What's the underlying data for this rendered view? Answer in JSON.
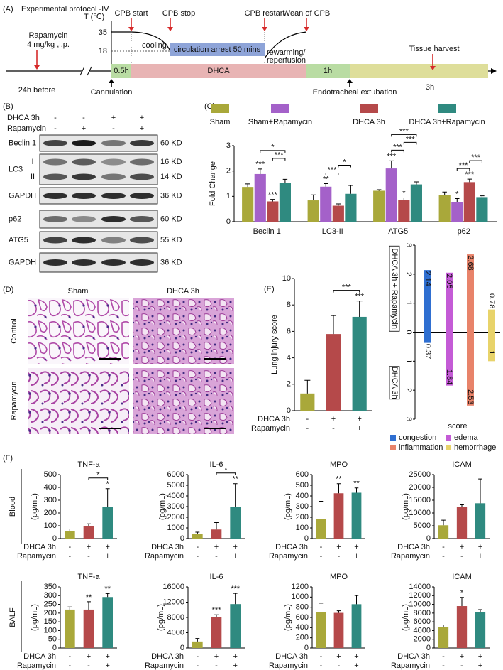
{
  "panel_labels": {
    "a": "(A)",
    "b": "(B)",
    "c": "(C)",
    "d": "(D)",
    "e": "(E)",
    "f": "(F)"
  },
  "protocol": {
    "title": "Experimental protocol -IV",
    "temperature_label": "T (℃)",
    "temperatures": [
      "35",
      "18"
    ],
    "events": [
      "CPB start",
      "CPB stop",
      "CPB restart",
      "Wean of CPB"
    ],
    "phases": [
      "cooling",
      "circulation arrest 50 mins"
    ],
    "rewarming": [
      "rewarming/",
      "reperfusion"
    ],
    "drug": [
      "Rapamycin",
      "4 mg/kg ,i.p."
    ],
    "pre_time": "24h before",
    "cannulation": "Cannulation",
    "timeline": [
      "0.5h",
      "DHCA",
      "1h"
    ],
    "extubation": "Endotracheal extubation",
    "harvest": "Tissue harvest",
    "harvest_time": "3h"
  },
  "western": {
    "conditions": [
      {
        "name": "DHCA 3h",
        "signs": [
          "-",
          "-",
          "+",
          "+"
        ]
      },
      {
        "name": "Rapamycin",
        "signs": [
          "-",
          "+",
          "-",
          "+"
        ]
      }
    ],
    "blots": [
      {
        "name": "Beclin 1",
        "sizes": [
          "60 KD"
        ]
      },
      {
        "name": "LC3",
        "bands": [
          "I",
          "II"
        ],
        "sizes": [
          "16 KD",
          "14 KD"
        ]
      },
      {
        "name": "GAPDH",
        "sizes": [
          "36 KD"
        ]
      },
      {
        "name": "p62",
        "sizes": [
          "60 KD"
        ]
      },
      {
        "name": "ATG5",
        "sizes": [
          "55 KD"
        ]
      },
      {
        "name": "GAPDH",
        "sizes": [
          "36 KD"
        ]
      }
    ]
  },
  "histology": {
    "columns": [
      "Sham",
      "DHCA 3h"
    ],
    "rows": [
      "Control",
      "Rapamycin"
    ]
  },
  "panel_f": {
    "rows": [
      "Blood",
      "BALF"
    ]
  },
  "chart_data": [
    {
      "type": "bar",
      "ylabel": "Fold Change",
      "categories": [
        "Beclin 1",
        "LC3-II",
        "ATG5",
        "p62"
      ],
      "ylim": [
        0,
        3
      ],
      "yticks": [
        0,
        1,
        2,
        3
      ],
      "series": [
        {
          "name": "Sham",
          "color": "#a9a83a",
          "values": [
            1.37,
            0.84,
            1.22,
            1.05
          ],
          "errors": [
            0.12,
            0.22,
            0.04,
            0.12
          ]
        },
        {
          "name": "Sham+Rapamycin",
          "color": "#a461c9",
          "values": [
            1.88,
            1.38,
            2.1,
            0.77
          ],
          "errors": [
            0.2,
            0.12,
            0.3,
            0.14
          ],
          "significance": [
            "***",
            "**",
            "***",
            "*"
          ]
        },
        {
          "name": "DHCA 3h",
          "color": "#b5494a",
          "values": [
            0.8,
            0.63,
            0.86,
            1.56
          ],
          "errors": [
            0.08,
            0.07,
            0.08,
            0.12
          ],
          "significance": [
            "***",
            null,
            "*",
            "***"
          ]
        },
        {
          "name": "DHCA 3h+Rapamycin",
          "color": "#2f8a80",
          "values": [
            1.52,
            1.1,
            1.47,
            0.97
          ],
          "errors": [
            0.15,
            0.33,
            0.1,
            0.05
          ]
        }
      ],
      "comparisons": [
        {
          "category": 0,
          "from": 2,
          "to": 3,
          "label": "***"
        },
        {
          "category": 0,
          "from": 1,
          "to": 3,
          "label": "*"
        },
        {
          "category": 1,
          "from": 1,
          "to": 2,
          "label": "***"
        },
        {
          "category": 1,
          "from": 2,
          "to": 3,
          "label": "*"
        },
        {
          "category": 2,
          "from": 1,
          "to": 2,
          "label": "***"
        },
        {
          "category": 2,
          "from": 2,
          "to": 3,
          "label": "***"
        },
        {
          "category": 2,
          "from": 1,
          "to": 3,
          "label": "***"
        },
        {
          "category": 3,
          "from": 1,
          "to": 2,
          "label": "***"
        },
        {
          "category": 3,
          "from": 2,
          "to": 3,
          "label": "***"
        }
      ]
    },
    {
      "type": "bar",
      "ylabel": "Lung injury score",
      "categories": [
        null,
        null,
        null
      ],
      "values": [
        1.3,
        5.8,
        7.1
      ],
      "errors": [
        1.0,
        1.4,
        1.2
      ],
      "colors": [
        "#a9a83a",
        "#b5494a",
        "#2f8a80"
      ],
      "significance": [
        null,
        null,
        "***"
      ],
      "comparisons": [
        {
          "from": 1,
          "to": 2,
          "label": "***"
        }
      ],
      "ylim": [
        0,
        10
      ],
      "yticks": [
        0,
        2,
        4,
        6,
        8,
        10
      ],
      "conditions": [
        {
          "name": "DHCA 3h",
          "signs": [
            "-",
            "+",
            "+"
          ]
        },
        {
          "name": "Rapamycin",
          "signs": [
            "-",
            "-",
            "+"
          ]
        }
      ]
    },
    {
      "type": "diverging_bar",
      "xlabel": "score",
      "groups": [
        "DHCA 3h + Rapamycin",
        "DHCA 3h"
      ],
      "ylim": [
        -3,
        3
      ],
      "yticks": [
        {
          "value": -3,
          "label": "3"
        },
        {
          "value": -2,
          "label": "2"
        },
        {
          "value": -1,
          "label": "1"
        },
        0,
        1,
        2,
        3
      ],
      "series": [
        {
          "name": "congestion",
          "color": "#2f6fd1",
          "values": [
            2.14,
            -0.37
          ],
          "value_labels": [
            "2.14",
            "0.37"
          ]
        },
        {
          "name": "edema",
          "color": "#c45bd6",
          "values": [
            2.05,
            -1.84
          ],
          "value_labels": [
            "2.05",
            "1.84"
          ]
        },
        {
          "name": "inflammation",
          "color": "#e8836a",
          "values": [
            2.68,
            -2.53
          ],
          "value_labels": [
            "2.68",
            "2.53"
          ]
        },
        {
          "name": "hemorrhage",
          "color": "#e8d36a",
          "values": [
            0.78,
            -1
          ],
          "value_labels": [
            "0.78",
            "1"
          ]
        }
      ]
    },
    {
      "type": "bar",
      "title": "TNF-a",
      "ylabel": "(pg/mL)",
      "categories": [
        null,
        null,
        null
      ],
      "values": [
        60,
        95,
        250
      ],
      "errors": [
        15,
        20,
        140
      ],
      "colors": [
        "#a9a83a",
        "#b5494a",
        "#2f8a80"
      ],
      "significance": [
        null,
        null,
        "*"
      ],
      "comparisons": [
        {
          "from": 1,
          "to": 2,
          "label": "*"
        }
      ],
      "ylim": [
        0,
        500
      ],
      "yticks": [
        0,
        100,
        200,
        300,
        400,
        500
      ],
      "conditions": [
        {
          "name": "DHCA 3h",
          "signs": [
            "-",
            "+",
            "+"
          ]
        },
        {
          "name": "Rapamycin",
          "signs": [
            "-",
            "-",
            "+"
          ]
        }
      ]
    },
    {
      "type": "bar",
      "title": "IL-6",
      "ylabel": "(pg/mL)",
      "categories": [
        null,
        null,
        null
      ],
      "values": [
        400,
        850,
        2950
      ],
      "errors": [
        200,
        650,
        2200
      ],
      "colors": [
        "#a9a83a",
        "#b5494a",
        "#2f8a80"
      ],
      "significance": [
        null,
        null,
        "**"
      ],
      "comparisons": [
        {
          "from": 1,
          "to": 2,
          "label": "*"
        }
      ],
      "ylim": [
        0,
        6000
      ],
      "yticks": [
        0,
        1000,
        2000,
        3000,
        4000,
        5000,
        6000
      ],
      "conditions": [
        {
          "name": "DHCA 3h",
          "signs": [
            "-",
            "+",
            "+"
          ]
        },
        {
          "name": "Rapamycin",
          "signs": [
            "-",
            "-",
            "+"
          ]
        }
      ]
    },
    {
      "type": "bar",
      "title": "MPO",
      "ylabel": "(pg/mL)",
      "categories": [
        null,
        null,
        null
      ],
      "values": [
        185,
        425,
        430
      ],
      "errors": [
        165,
        90,
        45
      ],
      "colors": [
        "#a9a83a",
        "#b5494a",
        "#2f8a80"
      ],
      "significance": [
        null,
        "**",
        "**"
      ],
      "ylim": [
        0,
        600
      ],
      "yticks": [
        0,
        100,
        200,
        300,
        400,
        500,
        600
      ],
      "conditions": [
        {
          "name": "DHCA 3h",
          "signs": [
            "-",
            "+",
            "+"
          ]
        },
        {
          "name": "Rapamycin",
          "signs": [
            "-",
            "-",
            "+"
          ]
        }
      ]
    },
    {
      "type": "bar",
      "title": "ICAM",
      "ylabel": "(pg/mL)",
      "categories": [
        null,
        null,
        null
      ],
      "values": [
        5200,
        12500,
        13800
      ],
      "errors": [
        2000,
        700,
        9500
      ],
      "colors": [
        "#a9a83a",
        "#b5494a",
        "#2f8a80"
      ],
      "ylim": [
        0,
        25000
      ],
      "yticks": [
        0,
        5000,
        10000,
        15000,
        20000,
        25000
      ],
      "conditions": [
        {
          "name": "DHCA 3h",
          "signs": [
            "-",
            "+",
            "+"
          ]
        },
        {
          "name": "Rapamycin",
          "signs": [
            "-",
            "-",
            "+"
          ]
        }
      ]
    },
    {
      "type": "bar",
      "title": "TNF-a",
      "ylabel": "(pg/mL)",
      "categories": [
        null,
        null,
        null
      ],
      "values": [
        220,
        220,
        292
      ],
      "errors": [
        15,
        45,
        20
      ],
      "colors": [
        "#a9a83a",
        "#b5494a",
        "#2f8a80"
      ],
      "significance": [
        null,
        "**",
        "**"
      ],
      "ylim": [
        0,
        350
      ],
      "yticks": [
        0,
        50,
        100,
        150,
        200,
        250,
        300,
        350
      ],
      "conditions": [
        {
          "name": "DHCA 3h",
          "signs": [
            "-",
            "+",
            "+"
          ]
        },
        {
          "name": "Rapamycin",
          "signs": [
            "-",
            "-",
            "+"
          ]
        }
      ]
    },
    {
      "type": "bar",
      "title": "IL-6",
      "ylabel": "(pg/mL)",
      "categories": [
        null,
        null,
        null
      ],
      "values": [
        1700,
        8000,
        11500
      ],
      "errors": [
        800,
        700,
        2800
      ],
      "colors": [
        "#a9a83a",
        "#b5494a",
        "#2f8a80"
      ],
      "significance": [
        null,
        "***",
        "***"
      ],
      "ylim": [
        0,
        16000
      ],
      "yticks": [
        0,
        4000,
        8000,
        12000,
        16000
      ],
      "conditions": [
        {
          "name": "DHCA 3h",
          "signs": [
            "-",
            "+",
            "+"
          ]
        },
        {
          "name": "Rapamycin",
          "signs": [
            "-",
            "-",
            "+"
          ]
        }
      ]
    },
    {
      "type": "bar",
      "title": "MPO",
      "ylabel": "(pg/mL)",
      "categories": [
        null,
        null,
        null
      ],
      "values": [
        700,
        690,
        860
      ],
      "errors": [
        180,
        40,
        170
      ],
      "colors": [
        "#a9a83a",
        "#b5494a",
        "#2f8a80"
      ],
      "ylim": [
        0,
        1200
      ],
      "yticks": [
        0,
        200,
        400,
        600,
        800,
        1000,
        1200
      ],
      "conditions": [
        {
          "name": "DHCA 3h",
          "signs": [
            "-",
            "+",
            "+"
          ]
        },
        {
          "name": "Rapamycin",
          "signs": [
            "-",
            "-",
            "+"
          ]
        }
      ]
    },
    {
      "type": "bar",
      "title": "ICAM",
      "ylabel": "(pg/mL)",
      "categories": [
        null,
        null,
        null
      ],
      "values": [
        4800,
        9600,
        8300
      ],
      "errors": [
        500,
        2000,
        500
      ],
      "colors": [
        "#a9a83a",
        "#b5494a",
        "#2f8a80"
      ],
      "significance": [
        null,
        "*",
        null
      ],
      "ylim": [
        0,
        14000
      ],
      "yticks": [
        0,
        2000,
        4000,
        6000,
        8000,
        10000,
        12000,
        14000
      ],
      "conditions": [
        {
          "name": "DHCA 3h",
          "signs": [
            "-",
            "+",
            "+"
          ]
        },
        {
          "name": "Rapamycin",
          "signs": [
            "-",
            "-",
            "+"
          ]
        }
      ]
    }
  ]
}
